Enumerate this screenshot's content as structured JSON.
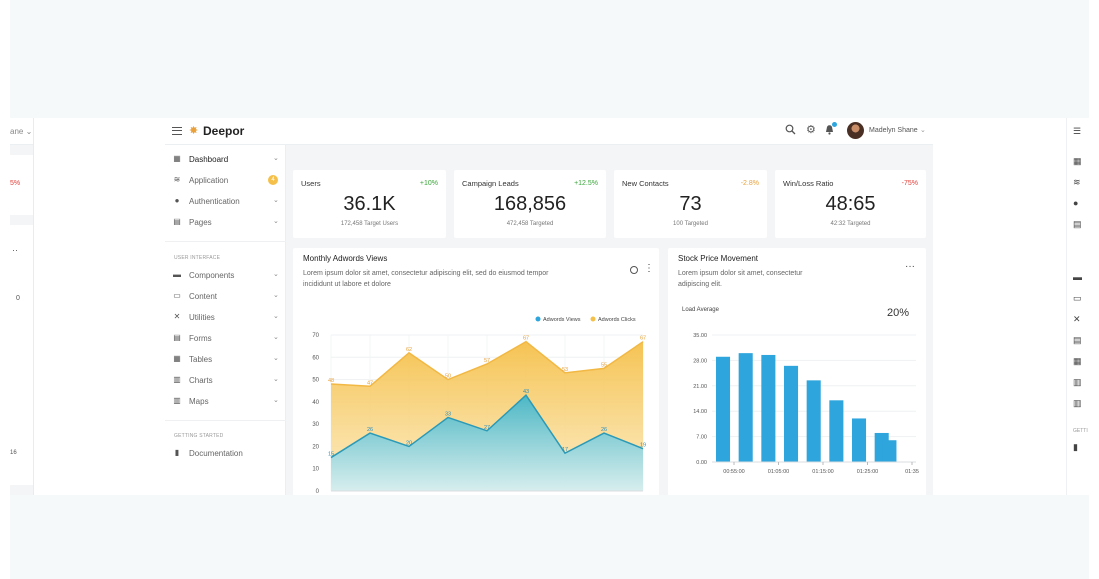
{
  "colors": {
    "accent_blue": "#2ea5dc",
    "accent_yellow": "#f5c04a",
    "positive": "#3aa53a",
    "warning": "#e9a23b",
    "negative": "#e0413a"
  },
  "ghost_left": {
    "header_fragment": "ane",
    "percent_fragment": "5%",
    "tick_fragment": "0",
    "bottom_fragment": "16"
  },
  "ghost_right": {
    "section_fragment": "GETTI"
  },
  "topbar": {
    "logo_text": "Deepor",
    "user_name": "Madelyn Shane",
    "icons": [
      "menu-icon",
      "search-icon",
      "gear-icon",
      "bell-icon"
    ]
  },
  "sidebar": {
    "items": [
      {
        "label": "Dashboard",
        "icon": "grid-icon",
        "badge": "",
        "active": true
      },
      {
        "label": "Application",
        "icon": "database-icon",
        "badge": "4"
      },
      {
        "label": "Authentication",
        "icon": "user-icon",
        "badge": ""
      },
      {
        "label": "Pages",
        "icon": "file-icon",
        "badge": ""
      }
    ],
    "section_ui": "USER INTERFACE",
    "ui_items": [
      {
        "label": "Components",
        "icon": "briefcase-icon"
      },
      {
        "label": "Content",
        "icon": "image-icon"
      },
      {
        "label": "Utilities",
        "icon": "tools-icon"
      },
      {
        "label": "Forms",
        "icon": "form-icon"
      },
      {
        "label": "Tables",
        "icon": "table-icon"
      },
      {
        "label": "Charts",
        "icon": "chart-icon"
      },
      {
        "label": "Maps",
        "icon": "map-icon"
      }
    ],
    "section_start": "GETTING STARTED",
    "doc_item": {
      "label": "Documentation",
      "icon": "book-icon"
    }
  },
  "stats": [
    {
      "title": "Users",
      "change": "+10%",
      "change_color": "#3aa53a",
      "value": "36.1K",
      "sub": "172,458 Target Users"
    },
    {
      "title": "Campaign Leads",
      "change": "+12.5%",
      "change_color": "#3aa53a",
      "value": "168,856",
      "sub": "472,458 Targeted"
    },
    {
      "title": "New Contacts",
      "change": "-2.8%",
      "change_color": "#e9a23b",
      "value": "73",
      "sub": "100 Targeted"
    },
    {
      "title": "Win/Loss Ratio",
      "change": "-75%",
      "change_color": "#e0413a",
      "value": "48:65",
      "sub": "42:32 Targeted"
    }
  ],
  "adwords": {
    "title": "Monthly Adwords Views",
    "desc_line1": "Lorem ipsum dolor sit amet, consectetur adipiscing elit, sed do eiusmod tempor",
    "desc_line2": "incididunt ut labore et dolore"
  },
  "stock": {
    "title": "Stock Price Movement",
    "desc_line1": "Lorem ipsum dolor sit amet, consectetur",
    "desc_line2": "adipiscing elit.",
    "load_label": "Load Average",
    "load_value": "20%"
  },
  "chart_data": [
    {
      "type": "area",
      "title": "Monthly Adwords Views",
      "legend_position": "top-right",
      "ylim": [
        0,
        70
      ],
      "yticks": [
        0,
        10,
        20,
        30,
        40,
        50,
        60,
        70
      ],
      "series": [
        {
          "name": "Adwords Views",
          "color": "#2ea5dc",
          "values": [
            15,
            26,
            20,
            33,
            27,
            43,
            17,
            26,
            19
          ]
        },
        {
          "name": "Adwords Clicks",
          "color": "#f5c04a",
          "values": [
            48,
            47,
            62,
            50,
            57,
            67,
            53,
            55,
            67
          ]
        }
      ],
      "grid": true
    },
    {
      "type": "bar",
      "title": "Load Average",
      "ylim": [
        0,
        35
      ],
      "yticks": [
        "0.00",
        "7.00",
        "14.00",
        "21.00",
        "28.00",
        "35.00"
      ],
      "xticks": [
        "00:55:00",
        "01:05:00",
        "01:15:00",
        "01:25:00",
        "01:35"
      ],
      "values": [
        29,
        30,
        29.5,
        26.5,
        22.5,
        17,
        12,
        8,
        6
      ],
      "color": "#2ea5dc",
      "grid": true
    }
  ]
}
